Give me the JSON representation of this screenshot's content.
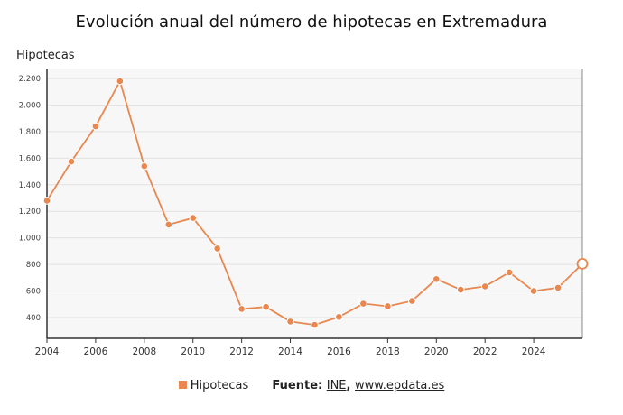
{
  "chart_data": {
    "type": "line",
    "title": "Evolución anual del número de hipotecas en Extremadura",
    "ylabel": "Hipotecas",
    "xlabel": "",
    "x": [
      2004,
      2005,
      2006,
      2007,
      2008,
      2009,
      2010,
      2011,
      2012,
      2013,
      2014,
      2015,
      2016,
      2017,
      2018,
      2019,
      2020,
      2021,
      2022,
      2023,
      2024,
      2025,
      2026
    ],
    "series": [
      {
        "name": "Hipotecas",
        "color": "#e8874f",
        "values": [
          1280,
          1575,
          1840,
          2180,
          1540,
          1100,
          1150,
          920,
          465,
          480,
          370,
          345,
          405,
          505,
          485,
          525,
          690,
          610,
          635,
          740,
          600,
          625,
          805
        ]
      }
    ],
    "xlim": [
      2004,
      2026
    ],
    "ylim": [
      250,
      2300
    ],
    "yticks": [
      400,
      600,
      800,
      "1.000",
      "1.200",
      "1.400",
      "1.600",
      "1.800",
      "2.000",
      "2.200"
    ],
    "ytick_values": [
      400,
      600,
      800,
      1000,
      1200,
      1400,
      1600,
      1800,
      2000,
      2200
    ],
    "xticks": [
      2004,
      2006,
      2008,
      2010,
      2012,
      2014,
      2016,
      2018,
      2020,
      2022,
      2024
    ],
    "grid": true,
    "legend": "bottom",
    "highlight_last_point": true
  },
  "legend": {
    "label": "Hipotecas"
  },
  "source": {
    "prefix": "Fuente:",
    "ine": "INE",
    "sep": ",",
    "epdata": "www.epdata.es"
  }
}
